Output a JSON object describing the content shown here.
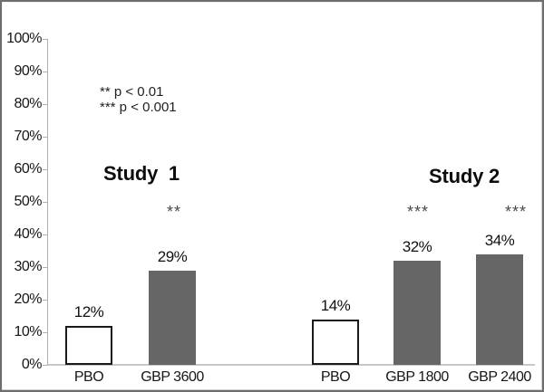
{
  "chart_data": {
    "type": "bar",
    "title": "",
    "xlabel": "",
    "ylabel": "",
    "ylim": [
      0,
      100
    ],
    "ytick_step": 10,
    "ytick_labels": [
      "100%",
      "90%",
      "80%",
      "70%",
      "60%",
      "50%",
      "40%",
      "30%",
      "20%",
      "10%",
      "0%"
    ],
    "grid": false,
    "legend_position": "upper-left-inside",
    "groups": [
      {
        "title": "Study  1"
      },
      {
        "title": "Study 2"
      }
    ],
    "bars": [
      {
        "group": "Study 1",
        "category": "PBO",
        "value": 12,
        "value_label": "12%",
        "style": "placebo",
        "significance": ""
      },
      {
        "group": "Study 1",
        "category": "GBP 3600",
        "value": 29,
        "value_label": "29%",
        "style": "active",
        "significance": "**"
      },
      {
        "group": "Study 2",
        "category": "PBO",
        "value": 14,
        "value_label": "14%",
        "style": "placebo",
        "significance": ""
      },
      {
        "group": "Study 2",
        "category": "GBP 1800",
        "value": 32,
        "value_label": "32%",
        "style": "active",
        "significance": "***"
      },
      {
        "group": "Study 2",
        "category": "GBP 2400",
        "value": 34,
        "value_label": "34%",
        "style": "active",
        "significance": "***"
      }
    ],
    "annotations": {
      "sig_legend_line1": "** p < 0.01",
      "sig_legend_line2": "*** p < 0.001"
    },
    "colors": {
      "active_bar_fill": "#666666",
      "placebo_bar_fill": "#ffffff",
      "placebo_bar_border": "#1a1a1a",
      "axis": "#b0b0b0",
      "baseline": "#c8c8c8",
      "text": "#111111",
      "significance_text": "#4a4a4a",
      "frame_border": "#6e6e6e"
    }
  }
}
